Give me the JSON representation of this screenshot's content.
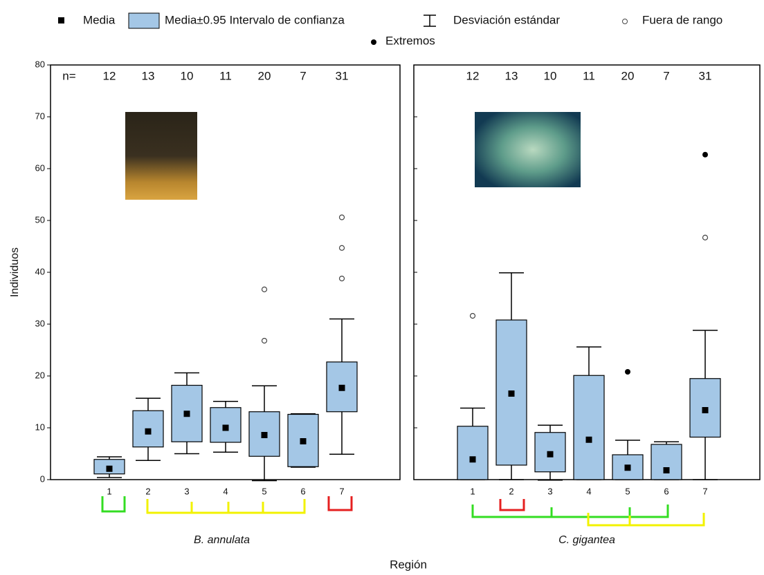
{
  "legend": {
    "mean": "Media",
    "box": "Media±0.95 Intervalo de confianza",
    "whisker": "Desviación estándar",
    "outlier": "Fuera de rango",
    "extreme": "Extremos"
  },
  "ylabel": "Individuos",
  "xlabel": "Región",
  "n_label": "n=",
  "chart_data": [
    {
      "type": "box",
      "xlabel": "B. annulata",
      "categories": [
        "1",
        "2",
        "3",
        "4",
        "5",
        "6",
        "7"
      ],
      "n": [
        12,
        13,
        10,
        11,
        20,
        7,
        31
      ],
      "mean": [
        2.1,
        9.3,
        12.7,
        10,
        8.6,
        7.4,
        17.7
      ],
      "box_low": [
        1.1,
        6.3,
        7.3,
        7.2,
        4.5,
        2.5,
        13.1
      ],
      "box_high": [
        3.9,
        13.3,
        18.2,
        13.9,
        13.1,
        12.6,
        22.7
      ],
      "whisker_low": [
        0.4,
        3.7,
        5,
        5.3,
        -0.2,
        2.4,
        4.9
      ],
      "whisker_high": [
        4.4,
        15.7,
        20.6,
        15.1,
        18.1,
        12.7,
        31
      ],
      "outliers": [
        [],
        [],
        [],
        [],
        [
          26.8,
          36.7
        ],
        [],
        [
          38.8,
          44.7,
          50.6
        ]
      ],
      "extremes": [
        [],
        [],
        [],
        [],
        [],
        [],
        []
      ],
      "color": "#a4c7e6",
      "ylim": [
        0,
        80
      ],
      "yticks": [
        0,
        10,
        20,
        30,
        40,
        50,
        60,
        70,
        80
      ]
    },
    {
      "type": "box",
      "xlabel": "C. gigantea",
      "categories": [
        "1",
        "2",
        "3",
        "4",
        "5",
        "6",
        "7"
      ],
      "n": [
        12,
        13,
        10,
        11,
        20,
        7,
        31
      ],
      "mean": [
        3.9,
        16.6,
        4.9,
        7.7,
        2.3,
        1.8,
        13.4
      ],
      "box_low": [
        0,
        2.8,
        1.5,
        0,
        0,
        0,
        8.2
      ],
      "box_high": [
        10.3,
        30.8,
        9.1,
        20.1,
        4.8,
        6.8,
        19.5
      ],
      "whisker_low": [
        0,
        0,
        -0.1,
        0,
        0,
        0,
        0
      ],
      "whisker_high": [
        13.8,
        39.9,
        10.5,
        25.6,
        7.6,
        7.3,
        28.8
      ],
      "outliers": [
        [
          31.6
        ],
        [],
        [],
        [],
        [],
        [],
        [
          46.7
        ]
      ],
      "extremes": [
        [],
        [],
        [],
        [],
        [
          20.8
        ],
        [],
        [
          62.7
        ]
      ],
      "color": "#a4c7e6",
      "ylim": [
        0,
        80
      ],
      "yticks": [
        0,
        10,
        20,
        30,
        40,
        50,
        60,
        70,
        80
      ]
    }
  ]
}
